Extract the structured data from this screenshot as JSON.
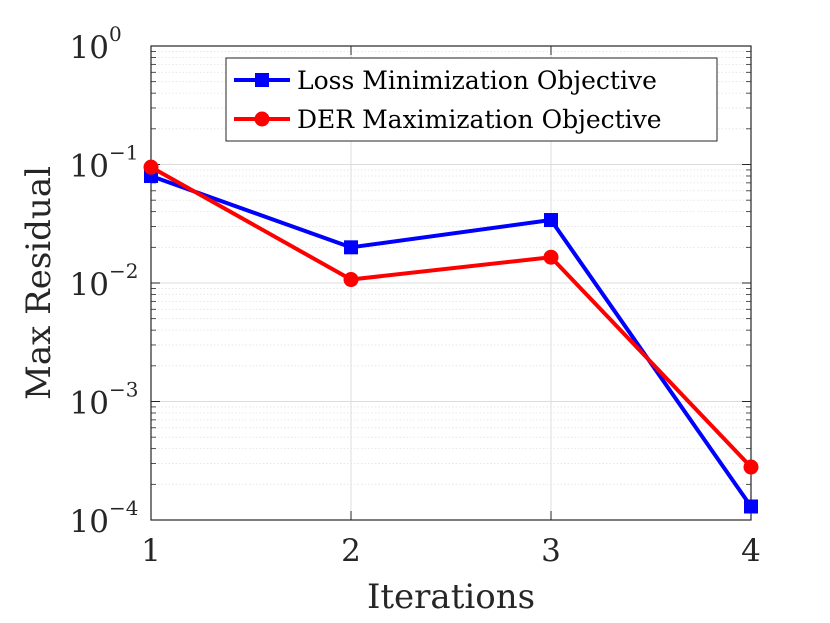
{
  "chart_data": {
    "type": "line",
    "title": "",
    "xlabel": "Iterations",
    "ylabel": "Max Residual",
    "yscale": "log",
    "xlim": [
      1,
      4
    ],
    "ylim": [
      0.0001,
      1
    ],
    "grid": true,
    "legend_position": "top-right",
    "x": [
      1,
      2,
      3,
      4
    ],
    "x_ticks": [
      {
        "value": 1,
        "label": "1"
      },
      {
        "value": 2,
        "label": "2"
      },
      {
        "value": 3,
        "label": "3"
      },
      {
        "value": 4,
        "label": "4"
      }
    ],
    "y_ticks": [
      {
        "value": 1,
        "base": "10",
        "exp": "0"
      },
      {
        "value": 0.1,
        "base": "10",
        "exp": "−1"
      },
      {
        "value": 0.01,
        "base": "10",
        "exp": "−2"
      },
      {
        "value": 0.001,
        "base": "10",
        "exp": "−3"
      },
      {
        "value": 0.0001,
        "base": "10",
        "exp": "−4"
      }
    ],
    "series": [
      {
        "name": "Loss Minimization Objective",
        "color": "#0000ff",
        "marker": "square",
        "values": [
          0.08,
          0.02,
          0.034,
          0.00013
        ]
      },
      {
        "name": "DER Maximization Objective",
        "color": "#ff0000",
        "marker": "circle",
        "values": [
          0.095,
          0.0107,
          0.0165,
          0.00028
        ]
      }
    ]
  }
}
